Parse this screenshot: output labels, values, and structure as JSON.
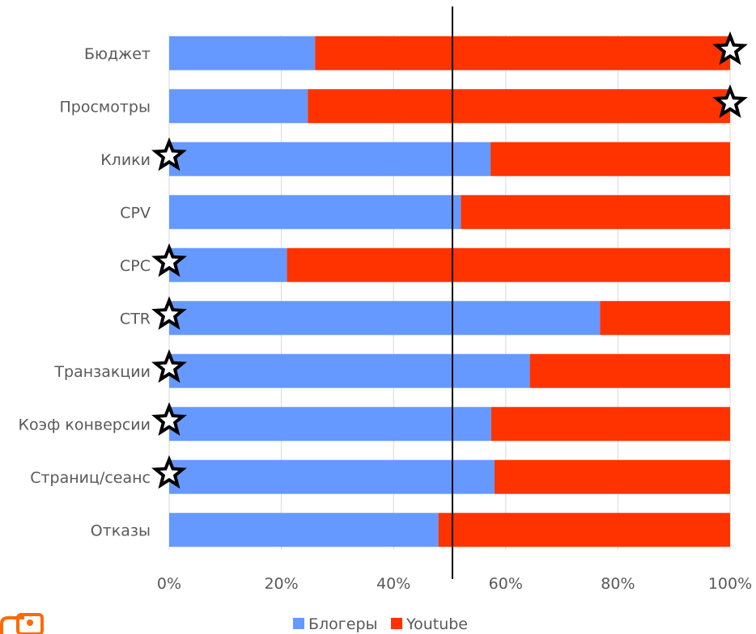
{
  "chart_data": {
    "type": "bar",
    "orientation": "horizontal",
    "stacked": "percent",
    "categories": [
      "Бюджет",
      "Просмотры",
      "Клики",
      "CPV",
      "CPC",
      "CTR",
      "Транзакции",
      "Коэф конверсии",
      "Страниц/сеанс",
      "Отказы"
    ],
    "series": [
      {
        "name": "Блогеры",
        "color": "#6699ff",
        "values": [
          26,
          24.7,
          57.3,
          52,
          21,
          76.8,
          64.3,
          57.4,
          58,
          48
        ]
      },
      {
        "name": "Youtube",
        "color": "#ff3300",
        "values": [
          74,
          75.3,
          42.7,
          48,
          79,
          23.2,
          35.7,
          42.6,
          42,
          52
        ]
      }
    ],
    "xticks": [
      "0%",
      "20%",
      "40%",
      "60%",
      "80%",
      "100%"
    ],
    "xlim": [
      0,
      100
    ],
    "reference_line_x": 50.5,
    "grid": true,
    "legend_position": "bottom",
    "title": "",
    "xlabel": "",
    "ylabel": "",
    "annotations": [
      {
        "category": "Бюджет",
        "marker": "star",
        "x": 100
      },
      {
        "category": "Просмотры",
        "marker": "star",
        "x": 100
      },
      {
        "category": "Клики",
        "marker": "star",
        "x": 0
      },
      {
        "category": "CPC",
        "marker": "star",
        "x": 0
      },
      {
        "category": "CTR",
        "marker": "star",
        "x": 0
      },
      {
        "category": "Транзакции",
        "marker": "star",
        "x": 0
      },
      {
        "category": "Коэф конверсии",
        "marker": "star",
        "x": 0
      },
      {
        "category": "Страниц/сеанс",
        "marker": "star",
        "x": 0
      }
    ]
  },
  "logo": {
    "icon": "brand-logo-icon",
    "color": "#ff6a00"
  }
}
